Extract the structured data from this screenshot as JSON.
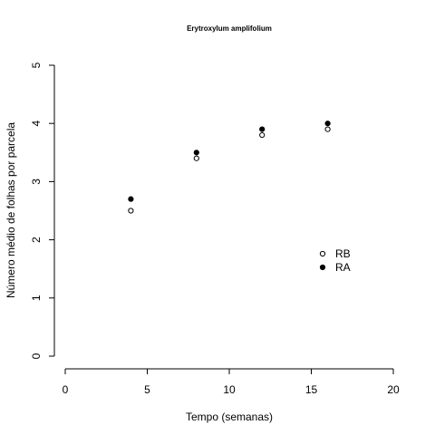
{
  "chart_data": {
    "type": "scatter",
    "title": "Erytroxylum amplifolium",
    "xlabel": "Tempo (semanas)",
    "ylabel": "Número médio de folhas por parcela",
    "xlim": [
      0,
      20
    ],
    "ylim": [
      0,
      5
    ],
    "x_ticks": [
      0,
      5,
      10,
      15,
      20
    ],
    "y_ticks": [
      0,
      1,
      2,
      3,
      4,
      5
    ],
    "grid": false,
    "legend_position": "right",
    "series": [
      {
        "name": "RB",
        "marker": "open-circle",
        "color": "#000000",
        "x": [
          4,
          8,
          12,
          16
        ],
        "y": [
          2.5,
          3.4,
          3.8,
          3.9
        ]
      },
      {
        "name": "RA",
        "marker": "filled-circle",
        "color": "#000000",
        "x": [
          4,
          8,
          12,
          16
        ],
        "y": [
          2.7,
          3.5,
          3.9,
          4.0
        ]
      }
    ]
  }
}
